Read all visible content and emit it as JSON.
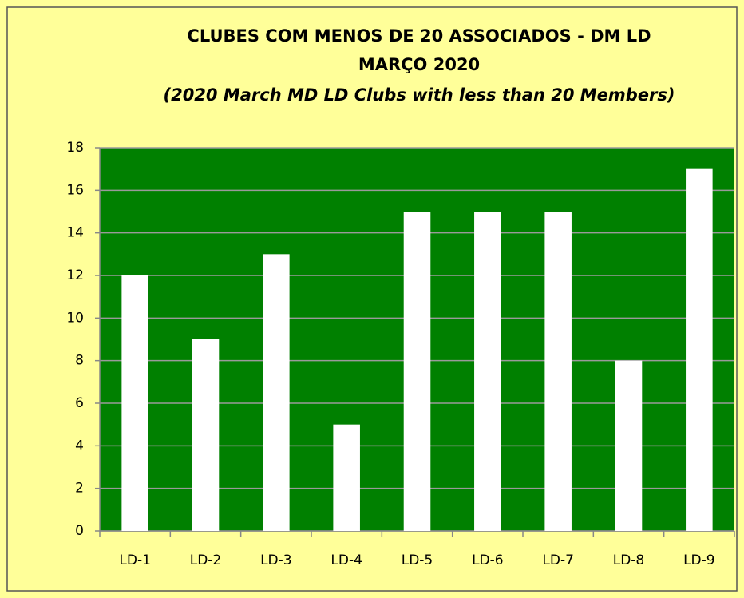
{
  "chart_data": {
    "type": "bar",
    "title": "CLUBES COM MENOS DE 20 ASSOCIADOS - DM LD",
    "subtitle": "MARÇO 2020",
    "annotation": "(2020 March MD LD  Clubs with less than 20 Members)",
    "categories": [
      "LD-1",
      "LD-2",
      "LD-3",
      "LD-4",
      "LD-5",
      "LD-6",
      "LD-7",
      "LD-8",
      "LD-9"
    ],
    "values": [
      12,
      9,
      13,
      5,
      15,
      15,
      15,
      8,
      17
    ],
    "color": "#ffffff",
    "plot_background": "#008000",
    "ylim": [
      0,
      18
    ],
    "yticks": [
      0,
      2,
      4,
      6,
      8,
      10,
      12,
      14,
      16,
      18
    ],
    "grid": true
  }
}
